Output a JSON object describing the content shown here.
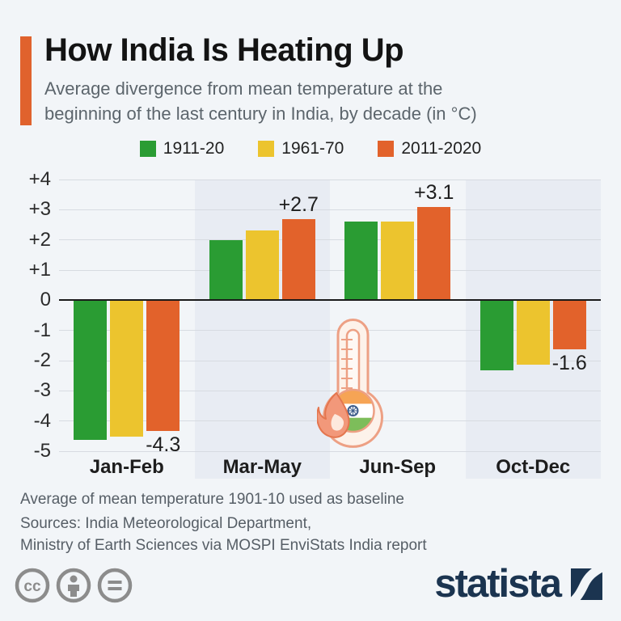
{
  "header": {
    "title": "How India Is Heating Up",
    "subtitle_line1": "Average divergence from mean temperature at the",
    "subtitle_line2": "beginning of the last century in India, by decade (in °C)",
    "accent_color": "#e0622d"
  },
  "chart_data": {
    "type": "bar",
    "title": "How India Is Heating Up",
    "xlabel": "",
    "ylabel": "",
    "categories": [
      "Jan-Feb",
      "Mar-May",
      "Jun-Sep",
      "Oct-Dec"
    ],
    "series": [
      {
        "name": "1911-20",
        "color": "#2a9c33",
        "values": [
          -4.6,
          2.0,
          2.6,
          -2.3
        ]
      },
      {
        "name": "1961-70",
        "color": "#ecc42e",
        "values": [
          -4.5,
          2.3,
          2.6,
          -2.1
        ]
      },
      {
        "name": "2011-2020",
        "color": "#e2622b",
        "values": [
          -4.3,
          2.7,
          3.1,
          -1.6
        ]
      }
    ],
    "annotations": [
      {
        "category": "Jan-Feb",
        "series": "2011-2020",
        "text": "-4.3"
      },
      {
        "category": "Mar-May",
        "series": "2011-2020",
        "text": "+2.7"
      },
      {
        "category": "Jun-Sep",
        "series": "2011-2020",
        "text": "+3.1"
      },
      {
        "category": "Oct-Dec",
        "series": "2011-2020",
        "text": "-1.6"
      }
    ],
    "y_ticks": [
      "+4",
      "+3",
      "+2",
      "+1",
      "0",
      "-1",
      "-2",
      "-3",
      "-4",
      "-5"
    ],
    "ylim": [
      -5,
      4
    ],
    "grid": true,
    "legend_position": "top",
    "banded_categories": [
      "Mar-May",
      "Oct-Dec"
    ],
    "band_color": "#e8ecf3",
    "zero_line_color": "#1a1a1a"
  },
  "footer": {
    "note": "Average of mean temperature 1901-10 used as baseline",
    "sources_line1": "Sources: India Meteorological Department,",
    "sources_line2": "Ministry of Earth Sciences via MOSPI EnviStats India report"
  },
  "branding": {
    "logo_text": "statista",
    "logo_color": "#1b3450"
  },
  "icons": {
    "license": [
      "cc-icon",
      "attribution-icon",
      "no-derivatives-icon"
    ],
    "illustration": "thermometer-india-flame-icon",
    "logo_mark": "statista-swoosh-icon"
  }
}
